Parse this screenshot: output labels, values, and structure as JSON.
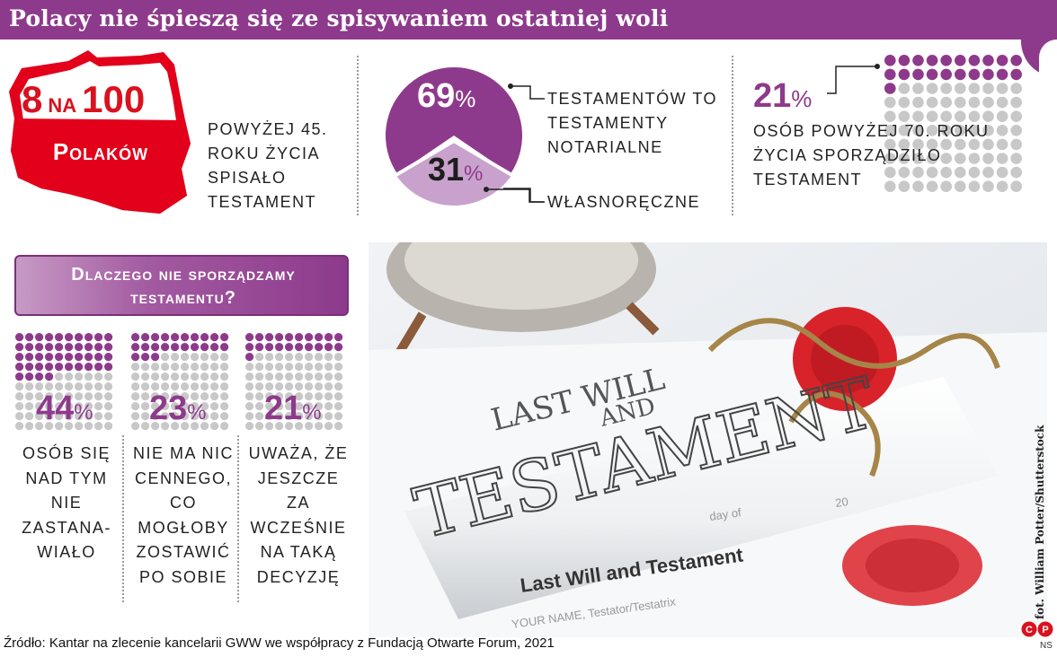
{
  "title": "Polacy nie śpieszą się ze spisywaniem ostatniej woli",
  "stat_poland": {
    "number_left": "8",
    "middle": "na",
    "number_right": "100",
    "label": "Polaków",
    "caption": "powyżej 45. roku życia spisało testament"
  },
  "donut": {
    "notarial_value": 69,
    "handwritten_value": 31,
    "percent_sign": "%",
    "notarial_caption": "testamentów to testamenty notarialne",
    "handwritten_caption": "własnoręczne",
    "colors": {
      "notarial": "#8e3a8c",
      "handwritten": "#c8a2cc"
    }
  },
  "stat_seniors": {
    "value": 21,
    "percent_sign": "%",
    "caption": "osób powyżej 70. roku życia sporządziło testament",
    "highlight_color": "#8e3a8c",
    "rest_color": "#c8c8c8"
  },
  "question": {
    "text_line1": "Dlaczego nie sporządzamy",
    "text_line2": "testamentu?"
  },
  "reasons": [
    {
      "value": 44,
      "percent_sign": "%",
      "caption": "osób się nad tym nie zastana-wiało"
    },
    {
      "value": 23,
      "percent_sign": "%",
      "caption": "nie ma nic cennego, co mogłoby zostawić po sobie"
    },
    {
      "value": 21,
      "percent_sign": "%",
      "caption": "uważa, że jeszcze za wcześnie na taką decyzję"
    }
  ],
  "photo": {
    "doc_heading_1": "LAST WILL",
    "doc_heading_2": "AND",
    "doc_heading_3": "TESTAMENT",
    "doc_line_1": "Last Will and Testament",
    "doc_line_2": "YOUR NAME, Testator/Testatrix",
    "doc_line_3": "day of",
    "doc_line_4": "20",
    "credit": "fot. William Potter/Shutterstock"
  },
  "source": "Źródło: Kantar na zlecenie kancelarii GWW we współpracy z Fundacją Otwarte Forum, 2021",
  "logo_mark": "CP",
  "author_initials": "NS"
}
